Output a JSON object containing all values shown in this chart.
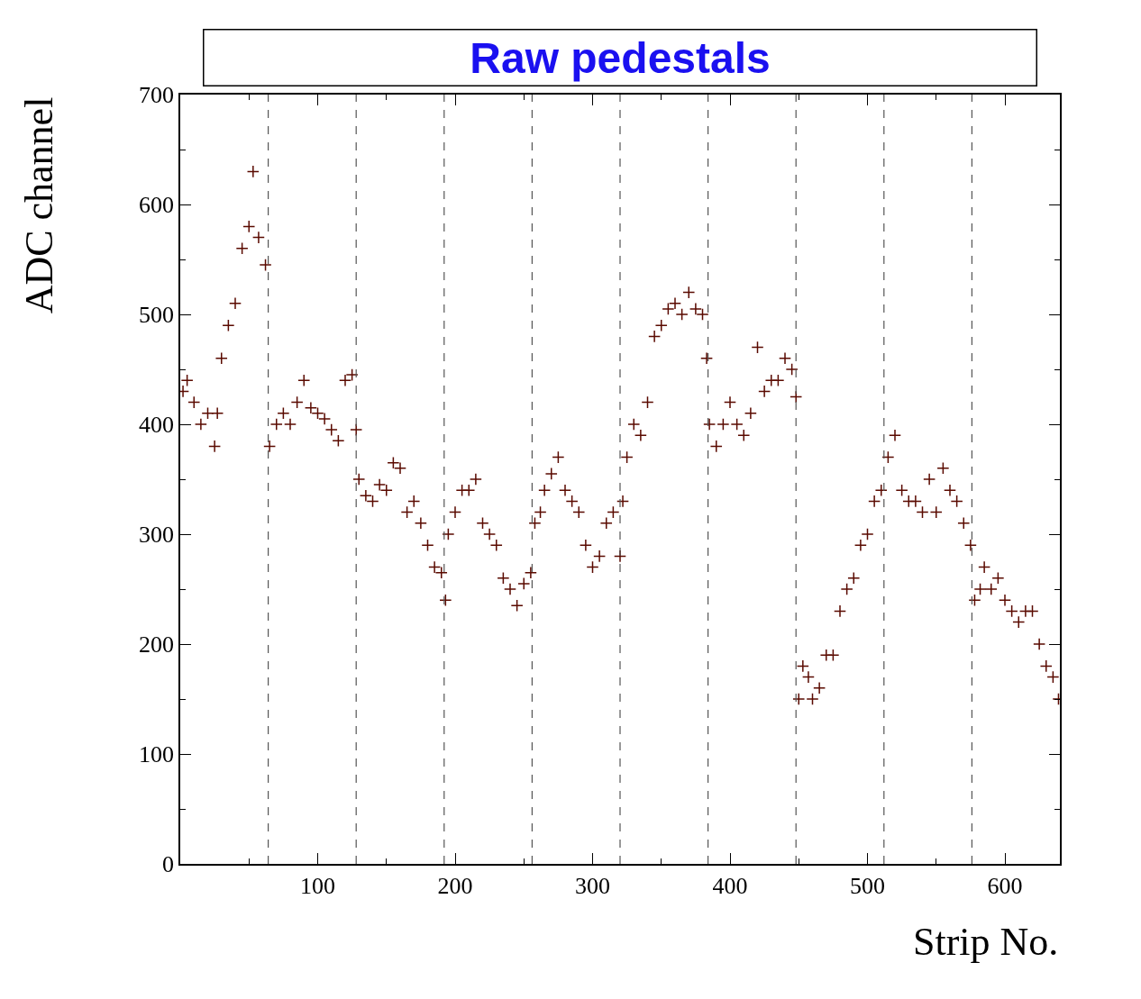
{
  "chart_data": {
    "type": "scatter",
    "title": "Raw pedestals",
    "xlabel": "Strip No.",
    "ylabel": "ADC channel",
    "xlim": [
      0,
      640
    ],
    "xticks": [
      100,
      200,
      300,
      400,
      500,
      600
    ],
    "ylim": [
      0,
      700
    ],
    "yticks": [
      0,
      100,
      200,
      300,
      400,
      500,
      600,
      700
    ],
    "marker": "cross",
    "series": [
      {
        "color": "#5a0a00",
        "x": [
          2,
          5,
          10,
          15,
          20,
          25,
          27,
          30,
          35,
          40,
          45,
          50,
          53,
          57,
          62,
          65,
          70,
          75,
          80,
          85,
          90,
          95,
          100,
          105,
          110,
          115,
          120,
          125,
          128,
          130,
          135,
          140,
          145,
          150,
          155,
          160,
          165,
          170,
          175,
          180,
          185,
          190,
          193,
          195,
          200,
          205,
          210,
          215,
          220,
          225,
          230,
          235,
          240,
          245,
          250,
          255,
          258,
          262,
          265,
          270,
          275,
          280,
          285,
          290,
          295,
          300,
          305,
          310,
          315,
          320,
          322,
          325,
          330,
          335,
          340,
          345,
          350,
          355,
          360,
          365,
          370,
          375,
          380,
          383,
          385,
          390,
          395,
          400,
          405,
          410,
          415,
          420,
          425,
          430,
          435,
          440,
          445,
          448,
          450,
          453,
          457,
          460,
          465,
          470,
          475,
          480,
          485,
          490,
          495,
          500,
          505,
          510,
          515,
          520,
          525,
          530,
          535,
          540,
          545,
          550,
          555,
          560,
          565,
          570,
          575,
          578,
          582,
          585,
          590,
          595,
          600,
          605,
          610,
          615,
          620,
          625,
          630,
          635,
          639
        ],
        "values": [
          430,
          440,
          420,
          400,
          410,
          380,
          410,
          460,
          490,
          510,
          560,
          580,
          630,
          570,
          545,
          380,
          400,
          410,
          400,
          420,
          440,
          415,
          410,
          405,
          395,
          385,
          440,
          445,
          395,
          350,
          335,
          330,
          345,
          340,
          365,
          360,
          320,
          330,
          310,
          290,
          270,
          265,
          240,
          300,
          320,
          340,
          340,
          350,
          310,
          300,
          290,
          260,
          250,
          235,
          255,
          265,
          310,
          320,
          340,
          355,
          370,
          340,
          330,
          320,
          290,
          270,
          280,
          310,
          320,
          280,
          330,
          370,
          400,
          390,
          420,
          480,
          490,
          505,
          510,
          500,
          520,
          505,
          500,
          460,
          400,
          380,
          400,
          420,
          400,
          390,
          410,
          470,
          430,
          440,
          440,
          460,
          450,
          425,
          150,
          180,
          170,
          150,
          160,
          190,
          190,
          230,
          250,
          260,
          290,
          300,
          330,
          340,
          370,
          390,
          340,
          330,
          330,
          320,
          350,
          320,
          360,
          340,
          330,
          310,
          290,
          240,
          250,
          270,
          250,
          260,
          240,
          230,
          220,
          230,
          230,
          200,
          180,
          170,
          150
        ]
      }
    ],
    "ref_lines": [
      {
        "axis": "x",
        "value": 64,
        "color": "#555555",
        "line_style": "dashed"
      },
      {
        "axis": "x",
        "value": 128,
        "color": "#555555",
        "line_style": "dashed"
      },
      {
        "axis": "x",
        "value": 192,
        "color": "#555555",
        "line_style": "dashed"
      },
      {
        "axis": "x",
        "value": 256,
        "color": "#555555",
        "line_style": "dashed"
      },
      {
        "axis": "x",
        "value": 320,
        "color": "#555555",
        "line_style": "dashed"
      },
      {
        "axis": "x",
        "value": 384,
        "color": "#555555",
        "line_style": "dashed"
      },
      {
        "axis": "x",
        "value": 448,
        "color": "#555555",
        "line_style": "dashed"
      },
      {
        "axis": "x",
        "value": 512,
        "color": "#555555",
        "line_style": "dashed"
      },
      {
        "axis": "x",
        "value": 576,
        "color": "#555555",
        "line_style": "dashed"
      }
    ]
  }
}
